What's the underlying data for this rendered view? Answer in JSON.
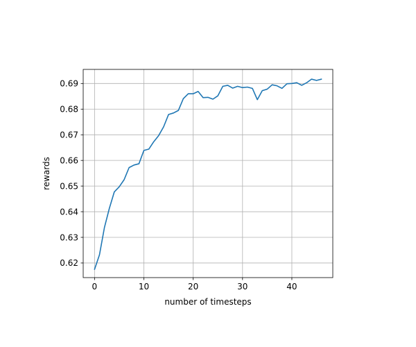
{
  "chart_data": {
    "type": "line",
    "title": "",
    "xlabel": "number of timesteps",
    "ylabel": "rewards",
    "xlim": [
      -2.3,
      48.3
    ],
    "ylim": [
      0.6143,
      0.6955
    ],
    "x_ticks": [
      0,
      10,
      20,
      30,
      40
    ],
    "x_tick_labels": [
      "0",
      "10",
      "20",
      "30",
      "40"
    ],
    "y_ticks": [
      0.62,
      0.63,
      0.64,
      0.65,
      0.66,
      0.67,
      0.68,
      0.69
    ],
    "y_tick_labels": [
      "0.62",
      "0.63",
      "0.64",
      "0.65",
      "0.66",
      "0.67",
      "0.68",
      "0.69"
    ],
    "grid": true,
    "legend": "none",
    "series": [
      {
        "color": "#1f77b4",
        "x": [
          0,
          1,
          2,
          3,
          4,
          5,
          6,
          7,
          8,
          9,
          10,
          11,
          12,
          13,
          14,
          15,
          16,
          17,
          18,
          19,
          20,
          21,
          22,
          23,
          24,
          25,
          26,
          27,
          28,
          29,
          30,
          31,
          32,
          33,
          34,
          35,
          36,
          37,
          38,
          39,
          40,
          41,
          42,
          43,
          44,
          45,
          46
        ],
        "y": [
          0.6175,
          0.6232,
          0.6338,
          0.6413,
          0.6477,
          0.6497,
          0.6525,
          0.6572,
          0.6582,
          0.6587,
          0.6639,
          0.6644,
          0.6673,
          0.6697,
          0.6731,
          0.6779,
          0.6785,
          0.6795,
          0.6841,
          0.686,
          0.686,
          0.6869,
          0.6845,
          0.6846,
          0.6839,
          0.6852,
          0.6889,
          0.6893,
          0.6882,
          0.6889,
          0.6884,
          0.6886,
          0.6881,
          0.6837,
          0.6872,
          0.6878,
          0.6895,
          0.6891,
          0.6881,
          0.6899,
          0.69,
          0.6903,
          0.6893,
          0.6903,
          0.6917,
          0.6912,
          0.6917
        ]
      }
    ]
  }
}
